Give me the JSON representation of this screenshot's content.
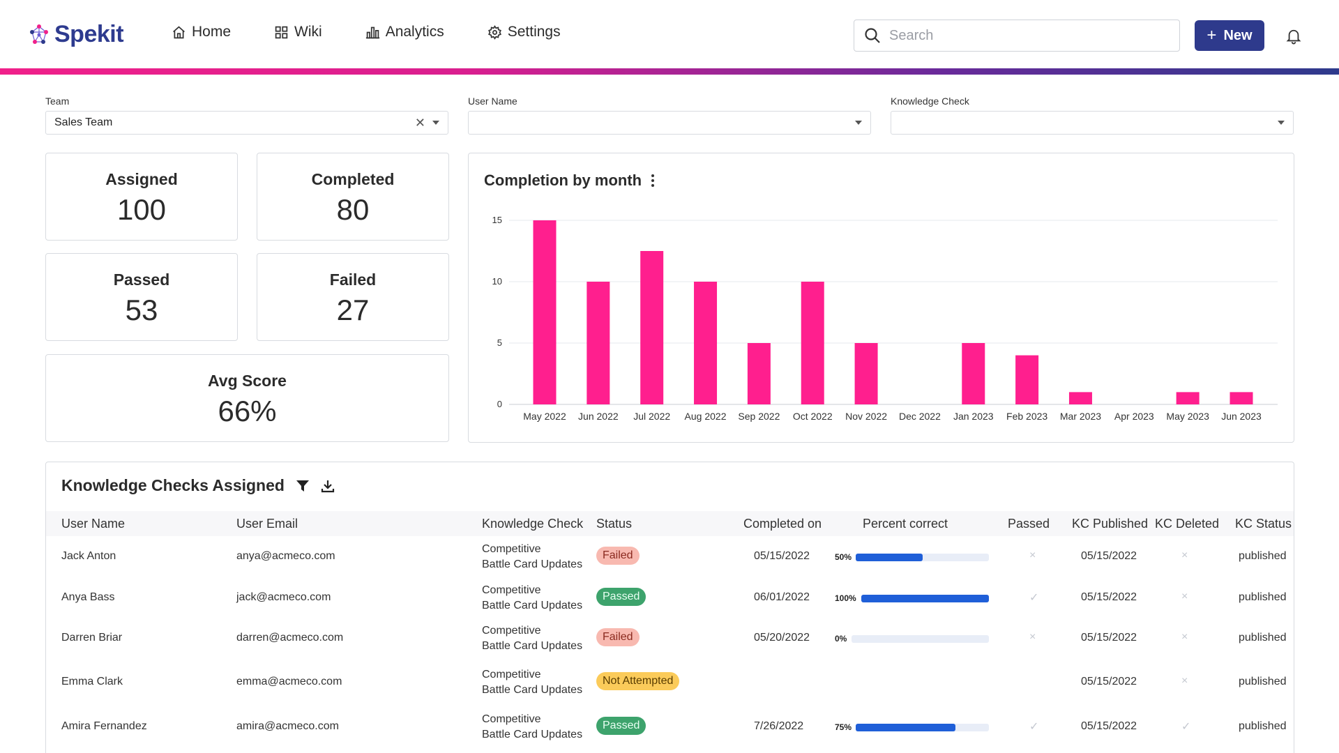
{
  "header": {
    "logo_text": "Spekit",
    "nav": [
      {
        "label": "Home",
        "icon": "home-icon"
      },
      {
        "label": "Wiki",
        "icon": "grid-icon"
      },
      {
        "label": "Analytics",
        "icon": "bar-chart-icon"
      },
      {
        "label": "Settings",
        "icon": "gear-icon"
      }
    ],
    "search_placeholder": "Search",
    "new_label": "New"
  },
  "filters": {
    "team_label": "Team",
    "team_value": "Sales Team",
    "user_label": "User Name",
    "user_value": "",
    "kc_label": "Knowledge Check",
    "kc_value": ""
  },
  "stats": {
    "assigned_label": "Assigned",
    "assigned": "100",
    "completed_label": "Completed",
    "completed": "80",
    "passed_label": "Passed",
    "passed": "53",
    "failed_label": "Failed",
    "failed": "27",
    "avg_label": "Avg Score",
    "avg": "66%"
  },
  "chart_data": {
    "type": "bar",
    "title": "Completion by month",
    "categories": [
      "May 2022",
      "Jun 2022",
      "Jul 2022",
      "Aug 2022",
      "Sep 2022",
      "Oct 2022",
      "Nov 2022",
      "Dec 2022",
      "Jan 2023",
      "Feb 2023",
      "Mar 2023",
      "Apr 2023",
      "May 2023",
      "Jun 2023"
    ],
    "values": [
      15,
      10,
      12.5,
      10,
      5,
      10,
      5,
      0,
      5,
      4,
      1,
      0,
      1,
      1
    ],
    "yticks": [
      0,
      5,
      10,
      15
    ],
    "ylim": [
      0,
      15
    ],
    "color": "#ff1f8e",
    "grid": true,
    "legend": "none"
  },
  "table": {
    "title": "Knowledge Checks Assigned",
    "headers": [
      "User Name",
      "User Email",
      "Knowledge Check",
      "Status",
      "Completed on",
      "Percent correct",
      "Passed",
      "KC Published",
      "KC Deleted",
      "KC Status"
    ],
    "rows": [
      {
        "name": "Jack Anton",
        "email": "anya@acmeco.com",
        "kc1": "Competitive",
        "kc2": "Battle Card Updates",
        "status": "Failed",
        "completed": "05/15/2022",
        "pct": 50,
        "pct_label": "50%",
        "passed": "×",
        "published": "05/15/2022",
        "deleted": "×",
        "kc_status": "published"
      },
      {
        "name": "Anya Bass",
        "email": "jack@acmeco.com",
        "kc1": "Competitive",
        "kc2": "Battle Card Updates",
        "status": "Passed",
        "completed": "06/01/2022",
        "pct": 100,
        "pct_label": "100%",
        "passed": "✓",
        "published": "05/15/2022",
        "deleted": "×",
        "kc_status": "published"
      },
      {
        "name": "Darren Briar",
        "email": "darren@acmeco.com",
        "kc1": "Competitive",
        "kc2": "Battle Card Updates",
        "status": "Failed",
        "completed": "05/20/2022",
        "pct": 0,
        "pct_label": "0%",
        "passed": "×",
        "published": "05/15/2022",
        "deleted": "×",
        "kc_status": "published"
      },
      {
        "name": "Emma Clark",
        "email": "emma@acmeco.com",
        "kc1": "Competitive",
        "kc2": "Battle Card Updates",
        "status": "Not Attempted",
        "completed": "",
        "pct": null,
        "pct_label": "",
        "passed": "",
        "published": "05/15/2022",
        "deleted": "×",
        "kc_status": "published"
      },
      {
        "name": "Amira Fernandez",
        "email": "amira@acmeco.com",
        "kc1": "Competitive",
        "kc2": "Battle Card Updates",
        "status": "Passed",
        "completed": "7/26/2022",
        "pct": 75,
        "pct_label": "75%",
        "passed": "✓",
        "published": "05/15/2022",
        "deleted": "✓",
        "kc_status": "published"
      }
    ]
  }
}
